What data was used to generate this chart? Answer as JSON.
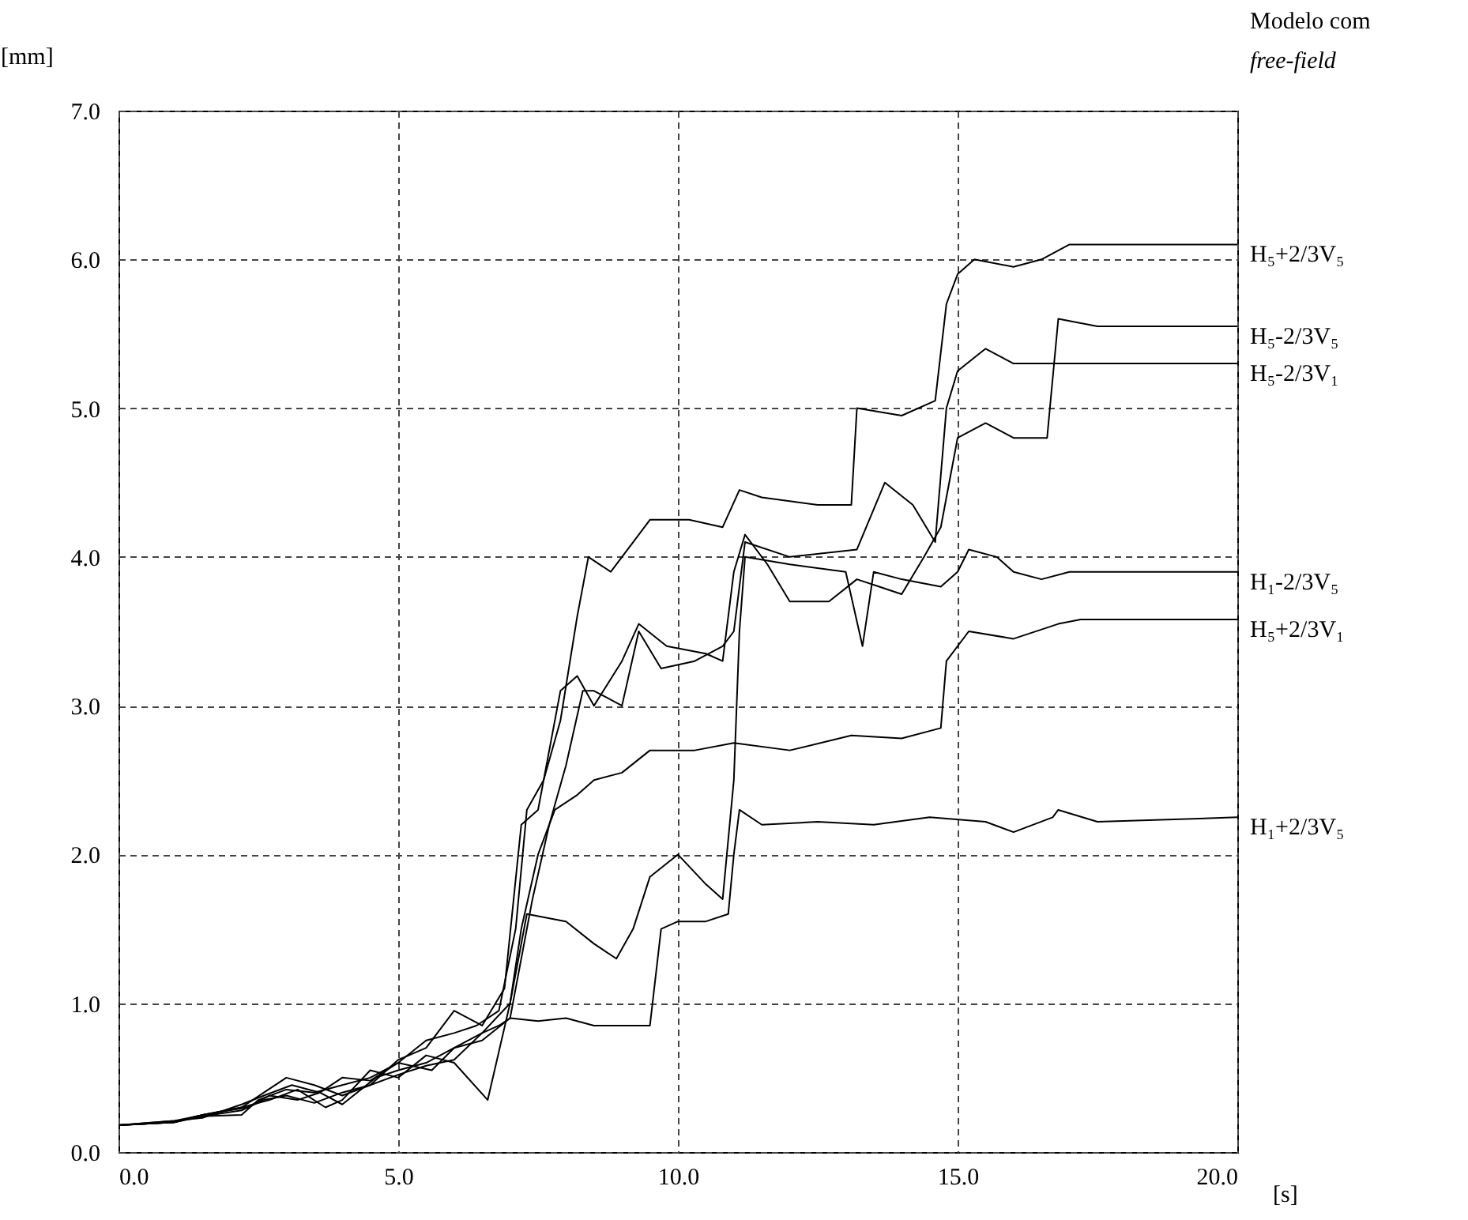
{
  "chart_data": {
    "type": "line",
    "xlabel": "[s]",
    "ylabel": "[mm]",
    "legend_title": "Modelo com free-field",
    "xlim": [
      0,
      20
    ],
    "ylim": [
      0,
      7
    ],
    "xticks": [
      {
        "value": 0,
        "label": "0.0"
      },
      {
        "value": 5,
        "label": "5.0"
      },
      {
        "value": 10,
        "label": "10.0"
      },
      {
        "value": 15,
        "label": "15.0"
      },
      {
        "value": 20,
        "label": "20.0"
      }
    ],
    "yticks": [
      {
        "value": 0,
        "label": "0.0"
      },
      {
        "value": 1,
        "label": "1.0"
      },
      {
        "value": 2,
        "label": "2.0"
      },
      {
        "value": 3,
        "label": "3.0"
      },
      {
        "value": 4,
        "label": "4.0"
      },
      {
        "value": 5,
        "label": "5.0"
      },
      {
        "value": 6,
        "label": "6.0"
      },
      {
        "value": 7,
        "label": "7.0"
      }
    ],
    "grid": true,
    "legend": false,
    "series": [
      {
        "name": "H₅+2/3V₅",
        "color": "#000000",
        "x": [
          0,
          1,
          1.4,
          2.2,
          2.5,
          3,
          3.5,
          4,
          4.5,
          5,
          5.5,
          6,
          6.4,
          6.8,
          7.1,
          7.3,
          7.6,
          7.9,
          8.2,
          8.4,
          8.8,
          9.2,
          9.5,
          10.2,
          10.8,
          11.1,
          11.5,
          12.5,
          13.1,
          13.2,
          14,
          14.6,
          14.8,
          15,
          15.3,
          16,
          16.5,
          17,
          17.5,
          20
        ],
        "values": [
          0.18,
          0.2,
          0.24,
          0.25,
          0.35,
          0.42,
          0.4,
          0.45,
          0.5,
          0.6,
          0.75,
          0.8,
          0.85,
          0.95,
          1.5,
          2.3,
          2.5,
          2.9,
          3.6,
          4.0,
          3.9,
          4.1,
          4.25,
          4.25,
          4.2,
          4.45,
          4.4,
          4.35,
          4.35,
          5.0,
          4.95,
          5.05,
          5.7,
          5.9,
          6.0,
          5.95,
          6.0,
          6.1,
          6.1,
          6.1
        ]
      },
      {
        "name": "H₅-2/3V₅",
        "color": "#000000",
        "x": [
          0,
          1,
          1.4,
          2.2,
          2.6,
          3,
          3.5,
          4,
          4.5,
          5,
          5.5,
          6,
          6.5,
          6.9,
          7.2,
          7.5,
          7.9,
          8.2,
          8.5,
          9,
          9.3,
          9.8,
          10.5,
          10.8,
          11,
          11.2,
          11.6,
          12,
          12.7,
          13.2,
          13.6,
          14,
          14.4,
          14.7,
          15,
          15.5,
          16,
          16.6,
          16.8,
          17.5,
          20
        ],
        "values": [
          0.18,
          0.21,
          0.24,
          0.3,
          0.4,
          0.5,
          0.45,
          0.38,
          0.45,
          0.62,
          0.7,
          0.95,
          0.85,
          1.1,
          2.2,
          2.3,
          3.1,
          3.2,
          3.0,
          3.3,
          3.55,
          3.4,
          3.35,
          3.3,
          3.9,
          4.15,
          3.95,
          3.7,
          3.7,
          3.85,
          3.8,
          3.75,
          4.0,
          4.2,
          4.8,
          4.9,
          4.8,
          4.8,
          5.6,
          5.55,
          5.55
        ]
      },
      {
        "name": "H₅-2/3V₁",
        "color": "#000000",
        "x": [
          0,
          1,
          1.5,
          2.3,
          2.7,
          3.2,
          3.6,
          4,
          4.6,
          5,
          5.5,
          6,
          6.5,
          7,
          7.4,
          7.7,
          8.0,
          8.3,
          8.5,
          9,
          9.3,
          9.7,
          10.3,
          10.8,
          11.0,
          11.2,
          12,
          13.2,
          13.7,
          14.2,
          14.6,
          14.8,
          15,
          15.5,
          16,
          16.5,
          17,
          20
        ],
        "values": [
          0.18,
          0.2,
          0.25,
          0.3,
          0.38,
          0.35,
          0.4,
          0.32,
          0.5,
          0.55,
          0.6,
          0.7,
          0.75,
          0.9,
          1.7,
          2.2,
          2.6,
          3.1,
          3.1,
          3.0,
          3.5,
          3.25,
          3.3,
          3.4,
          3.5,
          4.1,
          4.0,
          4.05,
          4.5,
          4.35,
          4.1,
          5.0,
          5.25,
          5.4,
          5.3,
          5.3,
          5.3,
          5.3
        ]
      },
      {
        "name": "H₁-2/3V₅",
        "color": "#000000",
        "x": [
          0,
          1,
          1.5,
          2.2,
          2.7,
          3.2,
          3.7,
          4,
          4.5,
          5,
          5.5,
          6,
          6.6,
          7,
          7.3,
          8,
          8.5,
          8.9,
          9.2,
          9.5,
          10,
          10.5,
          10.8,
          11,
          11.1,
          11.2,
          12,
          13,
          13.3,
          13.5,
          14,
          14.7,
          15,
          15.2,
          15.7,
          16,
          16.5,
          17,
          20
        ],
        "values": [
          0.18,
          0.2,
          0.25,
          0.3,
          0.35,
          0.42,
          0.3,
          0.35,
          0.55,
          0.5,
          0.65,
          0.6,
          0.35,
          1.0,
          1.6,
          1.55,
          1.4,
          1.3,
          1.5,
          1.85,
          2.0,
          1.8,
          1.7,
          2.5,
          3.5,
          4.0,
          3.95,
          3.9,
          3.4,
          3.9,
          3.85,
          3.8,
          3.9,
          4.05,
          4.0,
          3.9,
          3.85,
          3.9,
          3.9
        ]
      },
      {
        "name": "H₅+2/3V₁",
        "color": "#000000",
        "x": [
          0,
          1,
          1.5,
          2.2,
          2.6,
          3.1,
          3.6,
          4,
          4.5,
          5,
          5.6,
          6,
          6.5,
          7,
          7.2,
          7.5,
          7.8,
          8.2,
          8.5,
          9,
          9.5,
          10.3,
          11,
          12,
          13.1,
          14,
          14.7,
          14.8,
          15.2,
          16,
          16.8,
          17.2,
          20
        ],
        "values": [
          0.18,
          0.21,
          0.23,
          0.32,
          0.38,
          0.45,
          0.4,
          0.5,
          0.48,
          0.6,
          0.55,
          0.7,
          0.8,
          1.0,
          1.5,
          2.0,
          2.3,
          2.4,
          2.5,
          2.55,
          2.7,
          2.7,
          2.75,
          2.7,
          2.8,
          2.78,
          2.85,
          3.3,
          3.5,
          3.45,
          3.55,
          3.58,
          3.58
        ]
      },
      {
        "name": "H₁+2/3V₅",
        "color": "#000000",
        "x": [
          0,
          1,
          1.5,
          2.2,
          2.6,
          3,
          3.5,
          4,
          4.5,
          5,
          5.5,
          6,
          6.5,
          6.8,
          7,
          7.5,
          8,
          8.5,
          9,
          9.5,
          9.7,
          10,
          10.5,
          10.9,
          11.0,
          11.1,
          11.5,
          12.5,
          13.5,
          14.5,
          15.5,
          16,
          16.7,
          16.8,
          17.5,
          20
        ],
        "values": [
          0.18,
          0.2,
          0.24,
          0.28,
          0.35,
          0.38,
          0.33,
          0.4,
          0.45,
          0.52,
          0.58,
          0.62,
          0.8,
          0.85,
          0.9,
          0.88,
          0.9,
          0.85,
          0.85,
          0.85,
          1.5,
          1.55,
          1.55,
          1.6,
          2.0,
          2.3,
          2.2,
          2.22,
          2.2,
          2.25,
          2.22,
          2.15,
          2.25,
          2.3,
          2.22,
          2.25
        ]
      }
    ]
  }
}
